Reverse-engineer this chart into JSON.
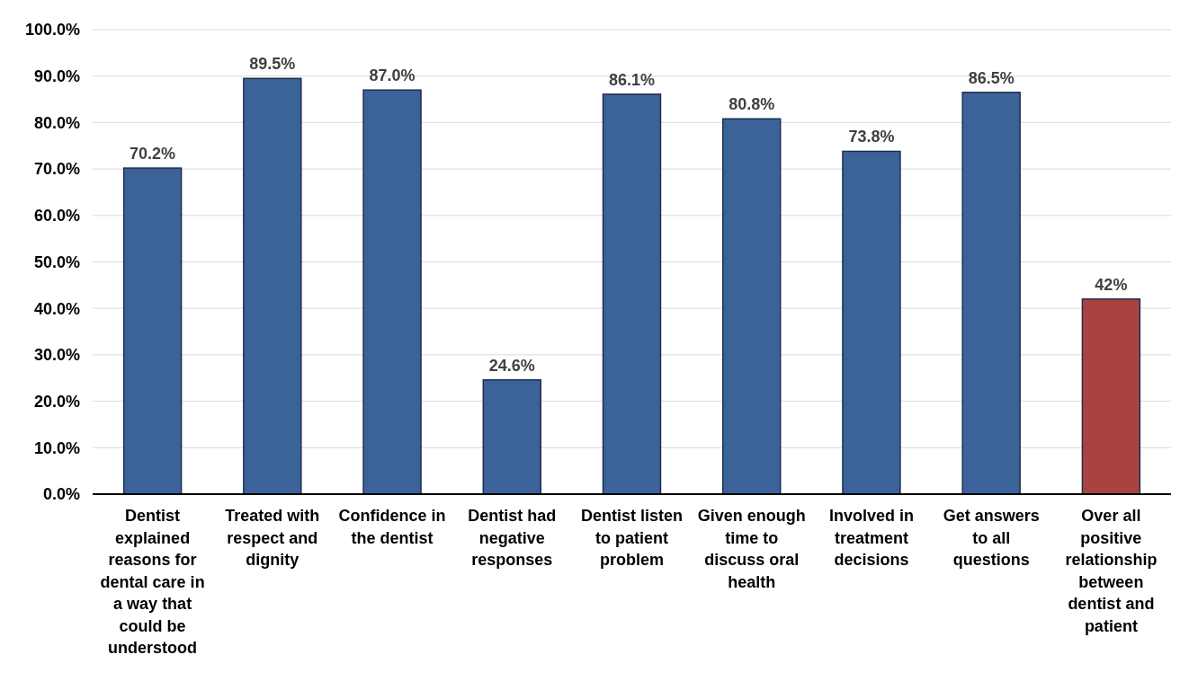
{
  "chart_data": {
    "type": "bar",
    "categories": [
      "Dentist explained reasons for dental care in a way that could be understood",
      "Treated with respect and dignity",
      "Confidence in the dentist",
      "Dentist had negative responses",
      "Dentist listen to patient problem",
      "Given enough time to discuss oral health",
      "Involved in treatment decisions",
      "Get answers to all questions",
      "Over all positive relationship between dentist and patient"
    ],
    "values": [
      70.2,
      89.5,
      87.0,
      24.6,
      86.1,
      80.8,
      73.8,
      86.5,
      42
    ],
    "colors": [
      "#3b6399",
      "#3b6399",
      "#3b6399",
      "#3b6399",
      "#3b6399",
      "#3b6399",
      "#3b6399",
      "#3b6399",
      "#a84341"
    ],
    "value_labels": [
      "70.2%",
      "89.5%",
      "87.0%",
      "24.6%",
      "86.1%",
      "80.8%",
      "73.8%",
      "86.5%",
      "42%"
    ],
    "ylim": [
      0,
      100
    ],
    "yticks": [
      {
        "value": 0,
        "label": "0.0%"
      },
      {
        "value": 10,
        "label": "10.0%"
      },
      {
        "value": 20,
        "label": "20.0%"
      },
      {
        "value": 30,
        "label": "30.0%"
      },
      {
        "value": 40,
        "label": "40.0%"
      },
      {
        "value": 50,
        "label": "50.0%"
      },
      {
        "value": 60,
        "label": "60.0%"
      },
      {
        "value": 70,
        "label": "70.0%"
      },
      {
        "value": 80,
        "label": "80.0%"
      },
      {
        "value": 90,
        "label": "90.0%"
      },
      {
        "value": 100,
        "label": "100.0%"
      }
    ],
    "grid": "y"
  }
}
